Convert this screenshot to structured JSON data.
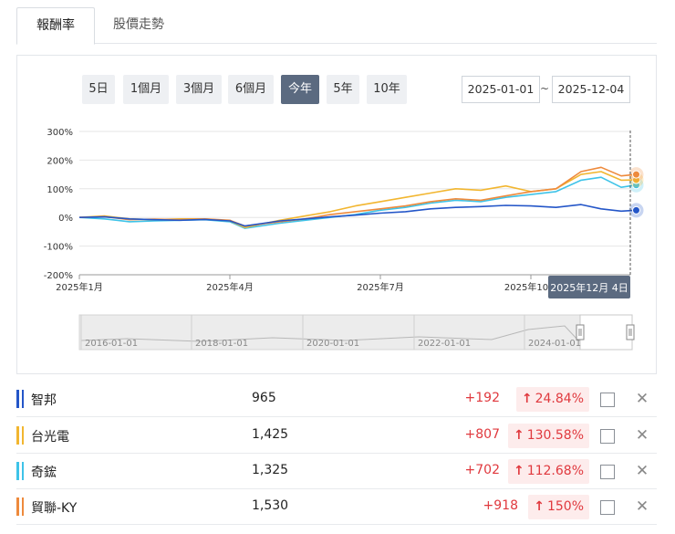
{
  "tabs": [
    {
      "label": "報酬率",
      "active": true
    },
    {
      "label": "股價走勢",
      "active": false
    }
  ],
  "range_buttons": [
    {
      "label": "5日",
      "active": false
    },
    {
      "label": "1個月",
      "active": false
    },
    {
      "label": "3個月",
      "active": false
    },
    {
      "label": "6個月",
      "active": false
    },
    {
      "label": "今年",
      "active": true
    },
    {
      "label": "5年",
      "active": false
    },
    {
      "label": "10年",
      "active": false
    }
  ],
  "date_range": {
    "start": "2025-01-01",
    "separator": "~",
    "end": "2025-12-04"
  },
  "tooltip_label": "2025年12月 4日",
  "chart_data": {
    "type": "line",
    "y_ticks": [
      "300%",
      "200%",
      "100%",
      "0%",
      "-100%",
      "-200%"
    ],
    "ylim": [
      -200,
      300
    ],
    "x_ticks": [
      "2025年1月",
      "2025年4月",
      "2025年7月",
      "2025年10月"
    ],
    "x_tick_months": [
      0,
      3,
      6,
      9
    ],
    "x_end_month": 11.1,
    "series": [
      {
        "name": "智邦",
        "color": "#2456c8",
        "x": [
          0,
          0.5,
          1,
          1.5,
          2,
          2.5,
          3,
          3.3,
          4,
          4.5,
          5,
          5.5,
          6,
          6.5,
          7,
          7.5,
          8,
          8.5,
          9,
          9.5,
          10,
          10.4,
          10.8,
          11.1
        ],
        "y": [
          0,
          2,
          -5,
          -8,
          -10,
          -7,
          -12,
          -30,
          -12,
          -5,
          2,
          8,
          15,
          20,
          30,
          35,
          38,
          42,
          40,
          35,
          45,
          30,
          22,
          25
        ]
      },
      {
        "name": "台光電",
        "color": "#f2b630",
        "x": [
          0,
          0.5,
          1,
          1.5,
          2,
          2.5,
          3,
          3.3,
          4,
          4.5,
          5,
          5.5,
          6,
          6.5,
          7,
          7.5,
          8,
          8.5,
          9,
          9.5,
          10,
          10.4,
          10.8,
          11.1
        ],
        "y": [
          0,
          5,
          -5,
          -8,
          -5,
          -5,
          -12,
          -35,
          -10,
          5,
          20,
          40,
          55,
          70,
          85,
          100,
          95,
          110,
          90,
          100,
          150,
          160,
          130,
          131
        ]
      },
      {
        "name": "奇鋐",
        "color": "#3ec3e8",
        "x": [
          0,
          0.5,
          1,
          1.5,
          2,
          2.5,
          3,
          3.3,
          4,
          4.5,
          5,
          5.5,
          6,
          6.5,
          7,
          7.5,
          8,
          8.5,
          9,
          9.5,
          10,
          10.4,
          10.8,
          11.1
        ],
        "y": [
          0,
          -5,
          -15,
          -12,
          -10,
          -8,
          -15,
          -38,
          -20,
          -10,
          0,
          10,
          25,
          35,
          50,
          60,
          55,
          70,
          80,
          90,
          130,
          140,
          105,
          113
        ]
      },
      {
        "name": "貿聯-KY",
        "color": "#ee8a3c",
        "x": [
          0,
          0.5,
          1,
          1.5,
          2,
          2.5,
          3,
          3.3,
          4,
          4.5,
          5,
          5.5,
          6,
          6.5,
          7,
          7.5,
          8,
          8.5,
          9,
          9.5,
          10,
          10.4,
          10.8,
          11.1
        ],
        "y": [
          0,
          3,
          -8,
          -6,
          -8,
          -5,
          -10,
          -30,
          -15,
          -5,
          10,
          20,
          30,
          40,
          55,
          65,
          60,
          75,
          90,
          100,
          160,
          175,
          145,
          150
        ]
      }
    ]
  },
  "navigator": {
    "ticks": [
      "2016-01-01",
      "2018-01-01",
      "2020-01-01",
      "2022-01-01",
      "2024-01-01"
    ]
  },
  "stocks": [
    {
      "name": "智邦",
      "color": "#2456c8",
      "price": "965",
      "change": "+192",
      "arrow": "↑",
      "pct": "24.84%"
    },
    {
      "name": "台光電",
      "color": "#f2b630",
      "price": "1,425",
      "change": "+807",
      "arrow": "↑",
      "pct": "130.58%"
    },
    {
      "name": "奇鋐",
      "color": "#3ec3e8",
      "price": "1,325",
      "change": "+702",
      "arrow": "↑",
      "pct": "112.68%"
    },
    {
      "name": "貿聯-KY",
      "color": "#ee8a3c",
      "price": "1,530",
      "change": "+918",
      "arrow": "↑",
      "pct": "150%"
    }
  ]
}
